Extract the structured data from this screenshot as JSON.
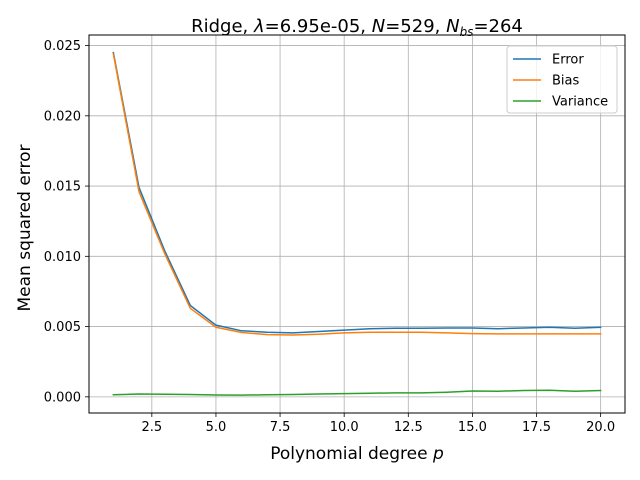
{
  "chart_data": {
    "type": "line",
    "title_parts": {
      "prefix": "Ridge, ",
      "lambda_symbol": "λ",
      "lambda_value": "=6.95e-05, ",
      "n_symbol": "N",
      "n_value": "=529, ",
      "nbs_symbol": "N",
      "nbs_subscript": "bs",
      "nbs_value": "=264"
    },
    "xlabel_text": "Polynomial degree ",
    "xlabel_symbol": "p",
    "ylabel": "Mean squared error",
    "xlim": [
      0.05,
      20.95
    ],
    "ylim": [
      -0.00115,
      0.02575
    ],
    "x_ticks": [
      2.5,
      5.0,
      7.5,
      10.0,
      12.5,
      15.0,
      17.5,
      20.0
    ],
    "x_tick_labels": [
      "2.5",
      "5.0",
      "7.5",
      "10.0",
      "12.5",
      "15.0",
      "17.5",
      "20.0"
    ],
    "y_ticks": [
      0.0,
      0.005,
      0.01,
      0.015,
      0.02,
      0.025
    ],
    "y_tick_labels": [
      "0.000",
      "0.005",
      "0.010",
      "0.015",
      "0.020",
      "0.025"
    ],
    "grid": true,
    "legend_position": "top-right",
    "x": [
      1,
      2,
      3,
      4,
      5,
      6,
      7,
      8,
      9,
      10,
      11,
      12,
      13,
      14,
      15,
      16,
      17,
      18,
      19,
      20
    ],
    "series": [
      {
        "name": "Error",
        "color": "#1f77b4",
        "values": [
          0.0245,
          0.0149,
          0.0104,
          0.0065,
          0.0051,
          0.0047,
          0.0046,
          0.00455,
          0.00465,
          0.00475,
          0.00485,
          0.00488,
          0.00488,
          0.0049,
          0.0049,
          0.00485,
          0.0049,
          0.00495,
          0.00488,
          0.00495
        ]
      },
      {
        "name": "Bias",
        "color": "#ff7f0e",
        "values": [
          0.0244,
          0.0146,
          0.0102,
          0.0063,
          0.00495,
          0.00458,
          0.00443,
          0.0044,
          0.00445,
          0.00455,
          0.0046,
          0.0046,
          0.0046,
          0.00455,
          0.0045,
          0.00448,
          0.00448,
          0.00448,
          0.00448,
          0.00448
        ]
      },
      {
        "name": "Variance",
        "color": "#2ca02c",
        "values": [
          0.00015,
          0.0002,
          0.00018,
          0.00017,
          0.00013,
          0.00012,
          0.00015,
          0.00017,
          0.0002,
          0.00023,
          0.00026,
          0.00028,
          0.00028,
          0.00033,
          0.00042,
          0.0004,
          0.00045,
          0.00047,
          0.0004,
          0.00045
        ]
      }
    ]
  }
}
